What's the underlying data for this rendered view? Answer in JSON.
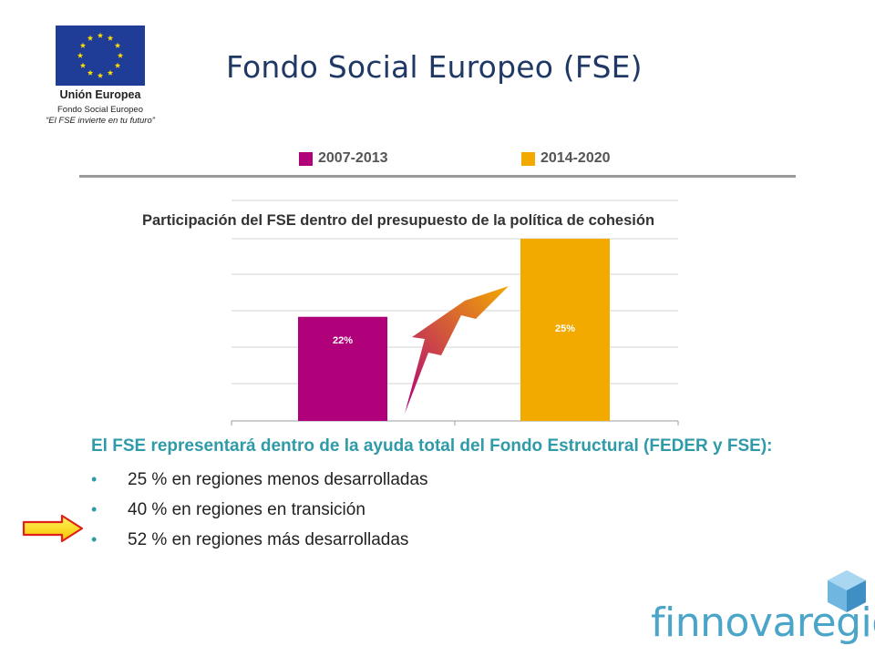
{
  "header": {
    "title": "Fondo Social Europeo (FSE)"
  },
  "eu_logo": {
    "name": "Unión Europea",
    "fund": "Fondo Social Europeo",
    "slogan": "“El FSE invierte en tu futuro”"
  },
  "colors": {
    "title": "#1f3864",
    "series_2007_2013": "#b0007a",
    "series_2014_2020": "#f2a900",
    "body_text": "#2f9aa8",
    "brand": "#4aa5c8"
  },
  "chart_data": {
    "type": "bar",
    "title": "Participación del FSE dentro del presupuesto de la política de cohesión",
    "categories": [
      "2007-2013",
      "2014-2020"
    ],
    "values": [
      22,
      25
    ],
    "data_labels": [
      "22%",
      "25%"
    ],
    "legend": [
      "2007-2013",
      "2014-2020"
    ],
    "legend_position": "top",
    "ylim": [
      18,
      25
    ],
    "grid": true,
    "annotation": "growth arrow from 2007-2013 bar toward 2014-2020 bar"
  },
  "body": {
    "lead": "El FSE representará dentro de la ayuda total del Fondo Estructural (FEDER y FSE):",
    "bullets": [
      "25 % en regiones menos desarrolladas",
      "40 % en regiones en transición",
      "52 % en regiones más desarrolladas"
    ],
    "bullet_symbol": "•"
  },
  "brand": {
    "name": "finnovaregio"
  }
}
